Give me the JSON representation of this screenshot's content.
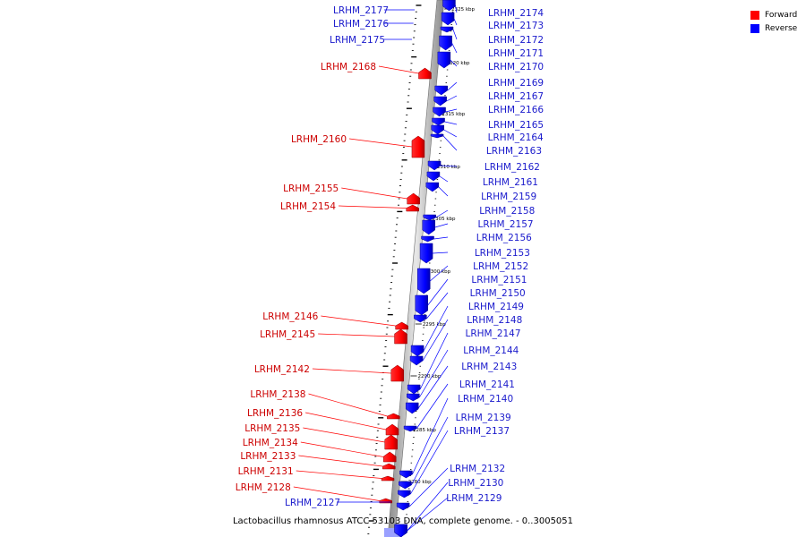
{
  "colors": {
    "forward": "#ff0000",
    "reverse": "#0000ff",
    "forward_label": "#cc0000",
    "reverse_label": "#1a1acc"
  },
  "legend": [
    {
      "name": "Forward",
      "color": "#ff0000"
    },
    {
      "name": "Reverse",
      "color": "#0000ff"
    }
  ],
  "caption": "Lactobacillus rhamnosus ATCC 53103 DNA, complete genome. - 0..3005051",
  "kbp_marks": [
    "2325 kbp",
    "2320 kbp",
    "2315 kbp",
    "2310 kbp",
    "2305 kbp",
    "2300 kbp",
    "2295 kbp",
    "2290 kbp",
    "2285 kbp",
    "2280 kbp"
  ],
  "genes_reverse": [
    "LRHM_2174",
    "LRHM_2173",
    "LRHM_2172",
    "LRHM_2171",
    "LRHM_2170",
    "LRHM_2169",
    "LRHM_2167",
    "LRHM_2166",
    "LRHM_2165",
    "LRHM_2164",
    "LRHM_2163",
    "LRHM_2162",
    "LRHM_2161",
    "LRHM_2159",
    "LRHM_2158",
    "LRHM_2157",
    "LRHM_2156",
    "LRHM_2153",
    "LRHM_2152",
    "LRHM_2151",
    "LRHM_2150",
    "LRHM_2149",
    "LRHM_2148",
    "LRHM_2147",
    "LRHM_2144",
    "LRHM_2143",
    "LRHM_2141",
    "LRHM_2140",
    "LRHM_2139",
    "LRHM_2137",
    "LRHM_2132",
    "LRHM_2130",
    "LRHM_2129"
  ],
  "genes_reverse_left": [
    "LRHM_2177",
    "LRHM_2176",
    "LRHM_2175",
    "LRHM_2127"
  ],
  "genes_forward": [
    "LRHM_2168",
    "LRHM_2160",
    "LRHM_2155",
    "LRHM_2154",
    "LRHM_2146",
    "LRHM_2145",
    "LRHM_2142",
    "LRHM_2138",
    "LRHM_2136",
    "LRHM_2135",
    "LRHM_2134",
    "LRHM_2133",
    "LRHM_2131",
    "LRHM_2128"
  ]
}
